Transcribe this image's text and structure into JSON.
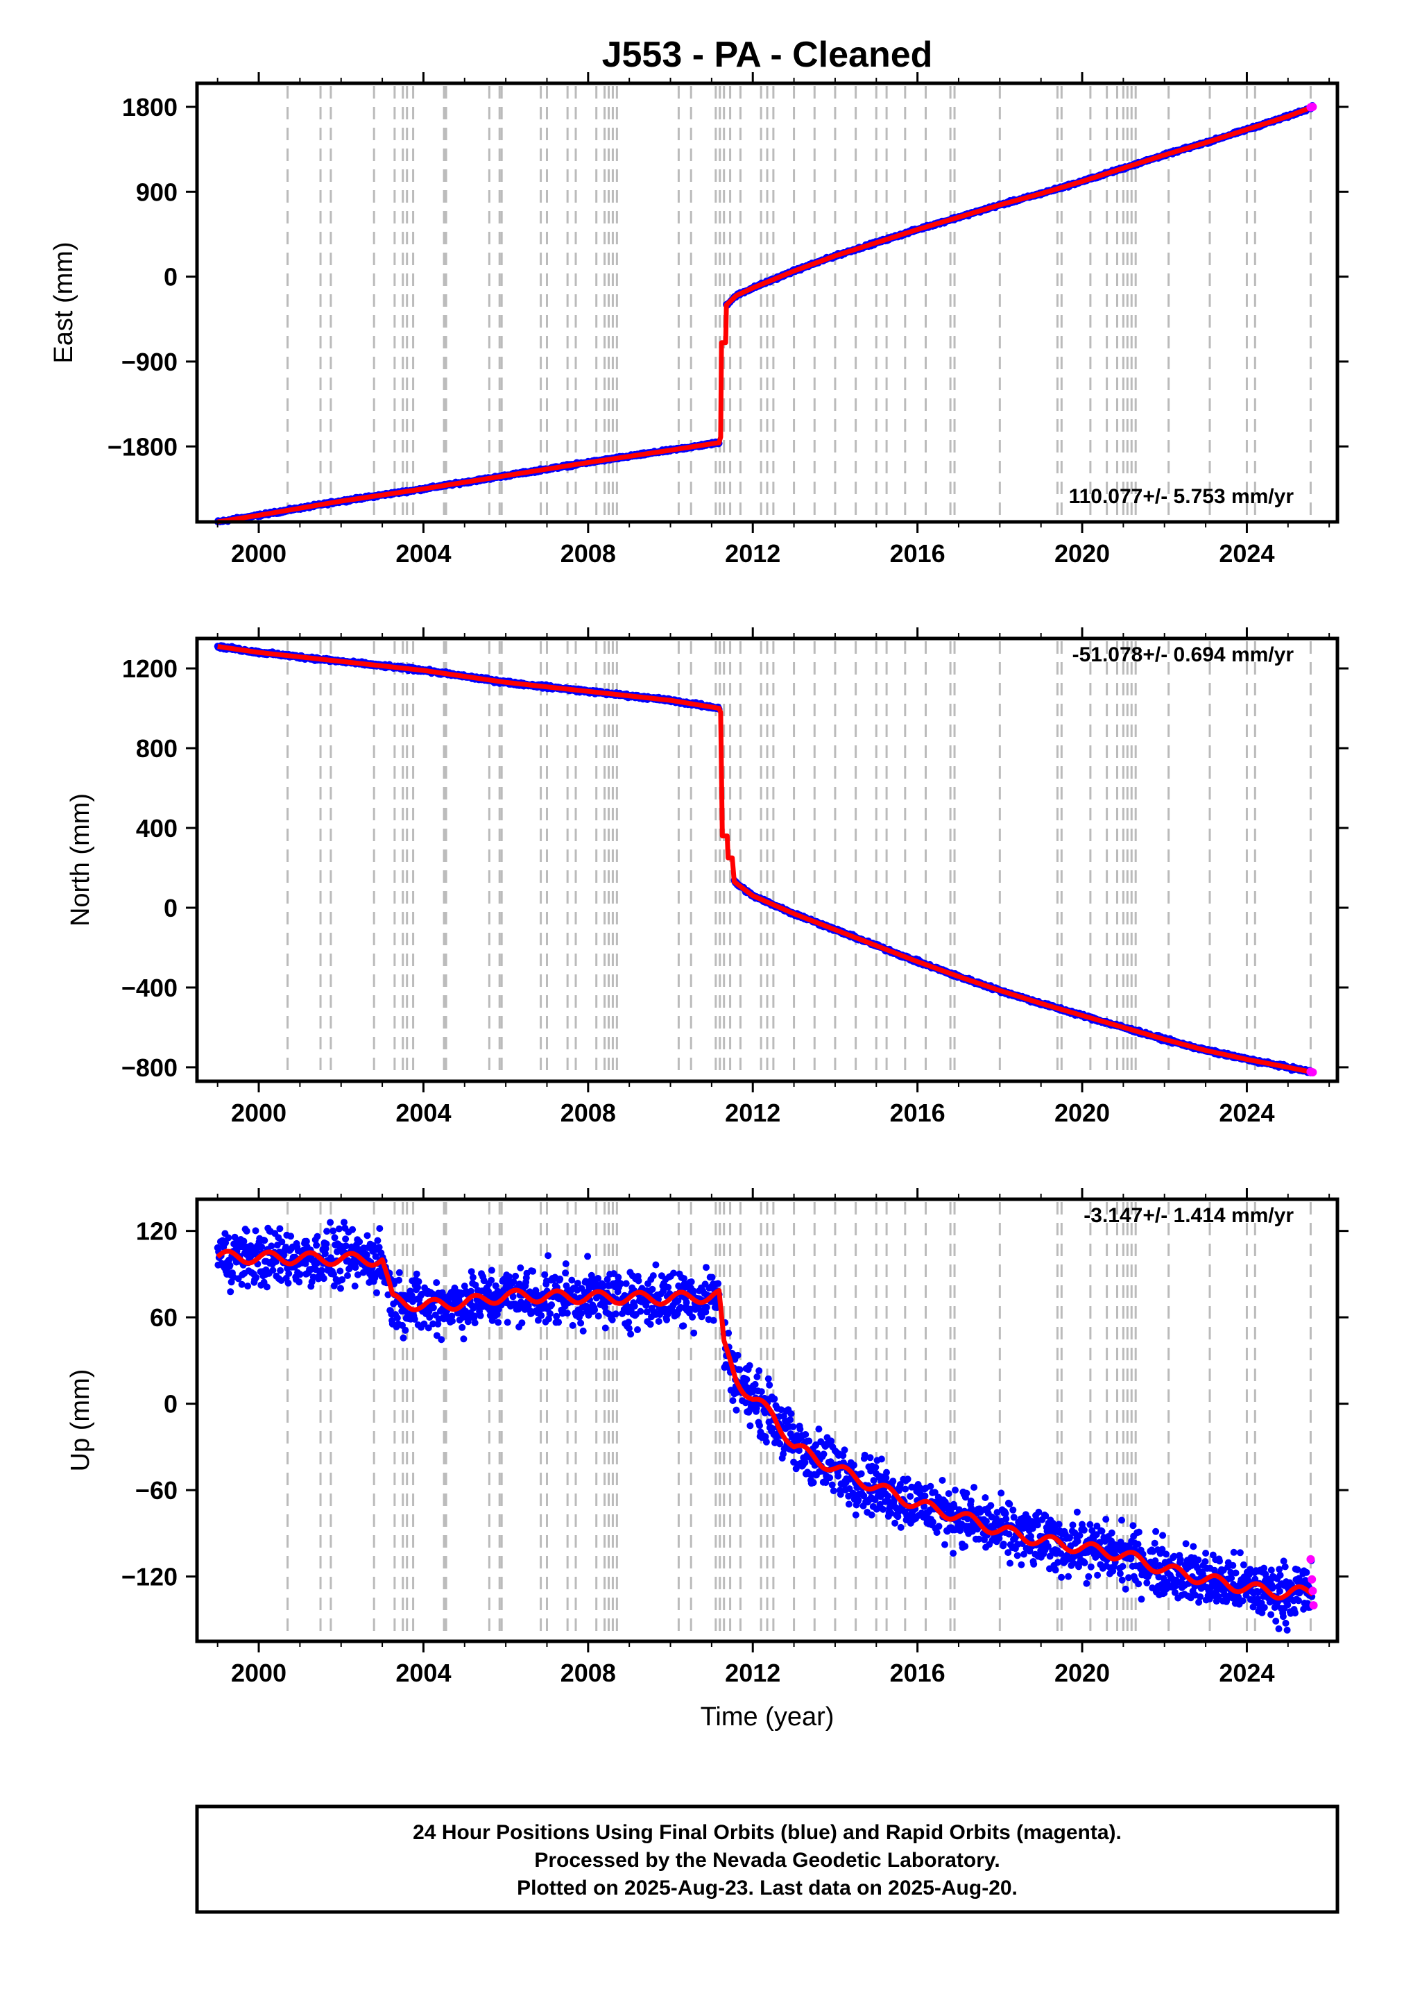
{
  "title": "J553  - PA - Cleaned",
  "xlabel": "Time (year)",
  "x_ticks": [
    2000,
    2004,
    2008,
    2012,
    2016,
    2020,
    2024
  ],
  "colors": {
    "final_orbits": "#0000ff",
    "rapid_orbits": "#ff00ff",
    "model_fit": "#ff0000",
    "event_lines": "#bbbbbb"
  },
  "footer": {
    "line1": "24 Hour Positions Using Final Orbits (blue) and Rapid Orbits (magenta).",
    "line2": "Processed by the Nevada Geodetic Laboratory.",
    "line3": "Plotted on 2025-Aug-23. Last data on 2025-Aug-20."
  },
  "chart_data": [
    {
      "type": "scatter",
      "ylabel": "East (mm)",
      "rate_label": "110.077+/- 5.753 mm/yr",
      "xlim": [
        1998.5,
        2026.2
      ],
      "ylim": [
        -2600,
        2050
      ],
      "yticks": [
        1800,
        900,
        0,
        -900,
        -1800
      ],
      "ytick_labels": [
        "1800",
        "900",
        "0",
        "−900",
        "−1800"
      ],
      "segments": [
        {
          "x": [
            1999.0,
            2000.0,
            2002.0,
            2004.0,
            2006.0,
            2008.0,
            2010.0,
            2011.18
          ],
          "y": [
            -2600,
            -2530,
            -2380,
            -2250,
            -2110,
            -1970,
            -1840,
            -1760
          ]
        },
        {
          "x": [
            2011.36,
            2011.6,
            2012.0,
            2012.5,
            2013.0,
            2014.0,
            2015.0,
            2016.0,
            2017.0,
            2018.0,
            2019.0,
            2020.0,
            2021.0,
            2022.0,
            2023.0,
            2024.0,
            2025.0,
            2025.6
          ],
          "y": [
            -300,
            -200,
            -120,
            -30,
            60,
            220,
            360,
            500,
            630,
            760,
            880,
            1010,
            1150,
            1290,
            1420,
            1560,
            1700,
            1800
          ]
        }
      ],
      "fit": {
        "x": [
          1999.0,
          2000.0,
          2002.0,
          2004.0,
          2006.0,
          2008.0,
          2010.0,
          2011.18,
          2011.22,
          2011.24,
          2011.34,
          2011.36,
          2011.6,
          2012.0,
          2012.5,
          2013.0,
          2014.0,
          2015.0,
          2016.0,
          2017.0,
          2018.0,
          2019.0,
          2020.0,
          2021.0,
          2022.0,
          2023.0,
          2024.0,
          2025.0,
          2025.6
        ],
        "y": [
          -2600,
          -2530,
          -2380,
          -2250,
          -2110,
          -1970,
          -1840,
          -1760,
          -1700,
          -700,
          -700,
          -300,
          -200,
          -120,
          -30,
          60,
          220,
          360,
          500,
          630,
          760,
          880,
          1010,
          1150,
          1290,
          1420,
          1560,
          1700,
          1800
        ]
      },
      "noise": 10,
      "rapid_points": {
        "x": [
          2025.55,
          2025.6
        ],
        "y": [
          1795,
          1800
        ]
      }
    },
    {
      "type": "scatter",
      "ylabel": "North (mm)",
      "rate_label": "-51.078+/- 0.694 mm/yr",
      "xlim": [
        1998.5,
        2026.2
      ],
      "ylim": [
        -870,
        1350
      ],
      "yticks": [
        1200,
        800,
        400,
        0,
        -400,
        -800
      ],
      "ytick_labels": [
        "1200",
        "800",
        "400",
        "0",
        "−400",
        "−800"
      ],
      "segments": [
        {
          "x": [
            1999.0,
            2000.0,
            2002.0,
            2004.0,
            2006.0,
            2008.0,
            2010.0,
            2011.18
          ],
          "y": [
            1310,
            1280,
            1235,
            1190,
            1130,
            1085,
            1040,
            1000
          ]
        },
        {
          "x": [
            2011.55,
            2012.0,
            2013.0,
            2014.0,
            2015.0,
            2016.0,
            2017.0,
            2018.0,
            2019.0,
            2020.0,
            2021.0,
            2022.0,
            2023.0,
            2024.0,
            2025.0,
            2025.6
          ],
          "y": [
            130,
            60,
            -30,
            -110,
            -190,
            -270,
            -345,
            -415,
            -480,
            -540,
            -600,
            -660,
            -715,
            -760,
            -800,
            -825
          ]
        }
      ],
      "fit": {
        "x": [
          1999.0,
          2000.0,
          2002.0,
          2004.0,
          2006.0,
          2008.0,
          2010.0,
          2011.18,
          2011.22,
          2011.26,
          2011.38,
          2011.4,
          2011.5,
          2011.55,
          2012.0,
          2013.0,
          2014.0,
          2015.0,
          2016.0,
          2017.0,
          2018.0,
          2019.0,
          2020.0,
          2021.0,
          2022.0,
          2023.0,
          2024.0,
          2025.0,
          2025.6
        ],
        "y": [
          1310,
          1280,
          1235,
          1190,
          1130,
          1085,
          1040,
          1000,
          980,
          360,
          360,
          250,
          250,
          130,
          60,
          -30,
          -110,
          -190,
          -270,
          -345,
          -415,
          -480,
          -540,
          -600,
          -660,
          -715,
          -760,
          -800,
          -825
        ]
      },
      "noise": 6,
      "rapid_points": {
        "x": [
          2025.55,
          2025.6
        ],
        "y": [
          -822,
          -825
        ]
      }
    },
    {
      "type": "scatter",
      "ylabel": "Up (mm)",
      "rate_label": "-3.147+/- 1.414 mm/yr",
      "xlim": [
        1998.5,
        2026.2
      ],
      "ylim": [
        -165,
        142
      ],
      "yticks": [
        120,
        60,
        0,
        -60,
        -120
      ],
      "ytick_labels": [
        "120",
        "60",
        "0",
        "−60",
        "−120"
      ],
      "segments": [
        {
          "x": [
            1999.0,
            2001.0,
            2003.0,
            2003.25,
            2004.0,
            2005.0,
            2006.0,
            2008.0,
            2010.0,
            2011.18
          ],
          "y": [
            102,
            101,
            100,
            72,
            68,
            70,
            75,
            74,
            73,
            75
          ]
        },
        {
          "x": [
            2011.3,
            2011.6,
            2011.8,
            2012.0,
            2012.5,
            2013.0,
            2014.0,
            2015.0,
            2016.0,
            2017.0,
            2018.0,
            2019.0,
            2020.0,
            2021.0,
            2022.0,
            2023.0,
            2024.0,
            2025.0,
            2025.6
          ],
          "y": [
            40,
            18,
            10,
            3,
            -8,
            -30,
            -45,
            -58,
            -70,
            -78,
            -88,
            -95,
            -100,
            -105,
            -115,
            -122,
            -128,
            -132,
            -130
          ]
        }
      ],
      "fit": {
        "x": [
          1999.0,
          2001.0,
          2003.0,
          2003.25,
          2004.0,
          2005.0,
          2006.0,
          2008.0,
          2010.0,
          2011.18,
          2011.3,
          2011.6,
          2011.8,
          2012.0,
          2012.5,
          2013.0,
          2014.0,
          2015.0,
          2016.0,
          2017.0,
          2018.0,
          2019.0,
          2020.0,
          2021.0,
          2022.0,
          2023.0,
          2024.0,
          2025.0,
          2025.6
        ],
        "y": [
          102,
          101,
          100,
          72,
          68,
          70,
          75,
          74,
          73,
          75,
          40,
          18,
          10,
          3,
          -8,
          -30,
          -45,
          -58,
          -70,
          -78,
          -88,
          -95,
          -100,
          -105,
          -115,
          -122,
          -128,
          -132,
          -130
        ]
      },
      "noise": 14,
      "seasonal": 4,
      "rapid_points": {
        "x": [
          2025.55,
          2025.58,
          2025.6,
          2025.62
        ],
        "y": [
          -108,
          -122,
          -130,
          -140
        ]
      }
    }
  ]
}
